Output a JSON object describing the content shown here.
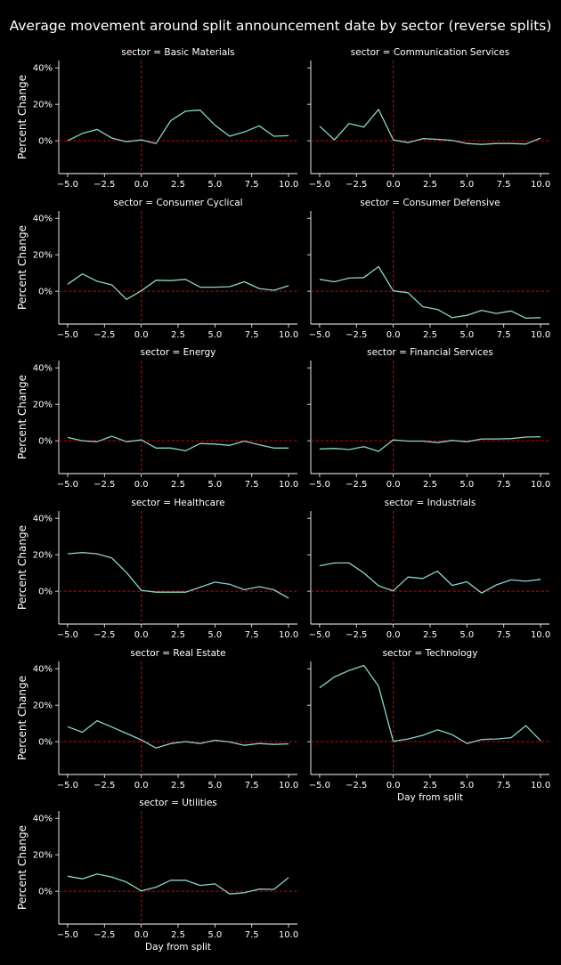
{
  "chart_data": {
    "type": "line",
    "title": "Average movement around split announcement date by sector (reverse splits)",
    "xlabel": "Day from split",
    "ylabel": "Percent Change",
    "x": [
      -5,
      -4,
      -3,
      -2,
      -1,
      0,
      1,
      2,
      3,
      4,
      5,
      6,
      7,
      8,
      9,
      10
    ],
    "xlim": [
      -5.6,
      10.6
    ],
    "ylim": [
      -18,
      44
    ],
    "xticks": [
      -5,
      -2.5,
      0,
      2.5,
      5,
      7.5,
      10
    ],
    "xtick_labels": [
      "−5.0",
      "−2.5",
      "0.0",
      "2.5",
      "5.0",
      "7.5",
      "10.0"
    ],
    "yticks": [
      0,
      20,
      40
    ],
    "ytick_labels": [
      "0%",
      "20%",
      "40%"
    ],
    "reference_lines": {
      "x": 0,
      "y": 0,
      "style": "dashed",
      "color": "#cc0000"
    },
    "line_color": "#8dd3c7",
    "background": "#000000",
    "grid": false,
    "panels": [
      {
        "title": "sector = Basic Materials",
        "values": [
          0,
          4,
          6.2,
          1.5,
          -0.5,
          0.5,
          -1.5,
          11,
          16.2,
          16.8,
          8.5,
          2.5,
          4.8,
          8.2,
          2.5,
          2.8
        ]
      },
      {
        "title": "sector = Communication Services",
        "values": [
          8,
          0.5,
          9.5,
          7.5,
          17.2,
          0.5,
          -1,
          1.2,
          0.8,
          0.2,
          -1.5,
          -2,
          -1.5,
          -1.5,
          -1.8,
          1.5
        ]
      },
      {
        "title": "sector = Consumer Cyclical",
        "values": [
          3.8,
          9.5,
          5.5,
          3.5,
          -4.5,
          0.2,
          6,
          5.8,
          6.5,
          2.2,
          2.2,
          2.5,
          5.2,
          1.5,
          0.5,
          3
        ]
      },
      {
        "title": "sector = Consumer Defensive",
        "values": [
          6.5,
          5.2,
          7.2,
          7.5,
          13.5,
          0.2,
          -0.8,
          -8.5,
          -10,
          -14.5,
          -13.2,
          -10.5,
          -12.2,
          -10.8,
          -14.8,
          -14.5
        ]
      },
      {
        "title": "sector = Energy",
        "values": [
          1.8,
          0,
          -0.5,
          2.5,
          -0.5,
          0.5,
          -4,
          -4,
          -5.5,
          -1.5,
          -1.8,
          -2.5,
          -0.2,
          -2.2,
          -4,
          -4
        ]
      },
      {
        "title": "sector = Financial Services",
        "values": [
          -4.5,
          -4.2,
          -4.8,
          -3.2,
          -5.8,
          0.5,
          -0.2,
          -0.2,
          -1,
          0.2,
          -0.5,
          1,
          1,
          1.2,
          2,
          2.2
        ]
      },
      {
        "title": "sector = Healthcare",
        "values": [
          20.5,
          21.2,
          20.5,
          18.2,
          10.2,
          0.5,
          -0.5,
          -0.5,
          -0.5,
          2.2,
          5,
          3.8,
          0.8,
          2.5,
          0.8,
          -3.8
        ]
      },
      {
        "title": "sector = Industrials",
        "values": [
          14,
          15.5,
          15.5,
          10,
          3,
          0.2,
          7.8,
          7,
          11,
          3.2,
          5.2,
          -1,
          3.5,
          6.2,
          5.5,
          6.5
        ]
      },
      {
        "title": "sector = Real Estate",
        "values": [
          8.2,
          5.2,
          11.5,
          8,
          4.5,
          1,
          -3.5,
          -1,
          0,
          -1,
          0.8,
          -0.2,
          -2,
          -1,
          -1.5,
          -1.2
        ]
      },
      {
        "title": "sector = Technology",
        "values": [
          29.5,
          35.5,
          39,
          41.8,
          30.5,
          0.2,
          1.5,
          3.5,
          6.5,
          3.8,
          -1,
          1.2,
          1.5,
          2.2,
          8.8,
          0.5
        ]
      },
      {
        "title": "sector = Utilities",
        "values": [
          8.2,
          6.8,
          9.5,
          7.8,
          5,
          0.2,
          2.2,
          6,
          6,
          3.2,
          4,
          -1.5,
          -0.8,
          1.2,
          1,
          7.5
        ]
      }
    ]
  }
}
